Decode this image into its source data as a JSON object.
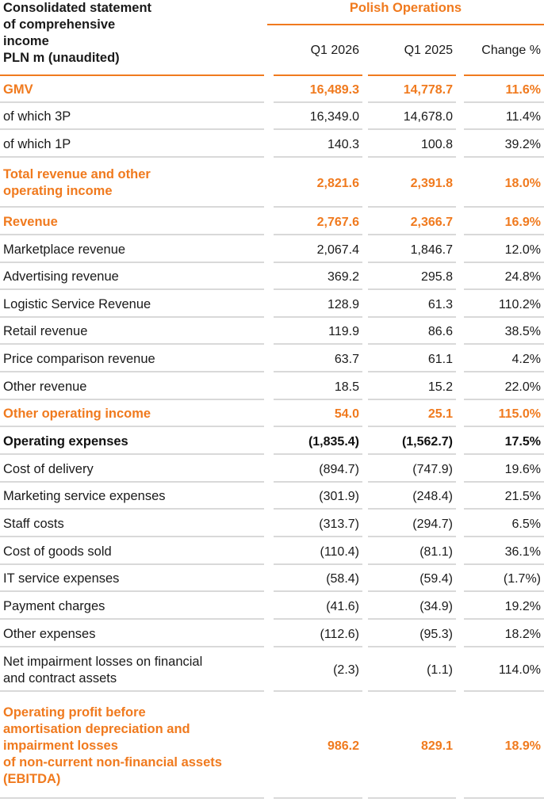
{
  "header": {
    "title_lines": [
      "Consolidated statement",
      "of comprehensive",
      "income",
      "PLN m (unaudited)"
    ],
    "group": "Polish Operations",
    "columns": [
      "Q1 2026",
      "Q1 2025",
      "Change %"
    ]
  },
  "colors": {
    "accent": "#f07a1e",
    "separator": "#d9d9d9"
  },
  "rows": [
    {
      "label": [
        "GMV"
      ],
      "v": [
        "16,489.3",
        "14,778.7",
        "11.6%"
      ],
      "style": "hl"
    },
    {
      "label": [
        "of which 3P"
      ],
      "v": [
        "16,349.0",
        "14,678.0",
        "11.4%"
      ],
      "style": ""
    },
    {
      "label": [
        "of which 1P"
      ],
      "v": [
        "140.3",
        "100.8",
        "39.2%"
      ],
      "style": ""
    },
    {
      "label": [
        "Total revenue and other",
        "operating income"
      ],
      "v": [
        "2,821.6",
        "2,391.8",
        "18.0%"
      ],
      "style": "hl"
    },
    {
      "label": [
        "Revenue"
      ],
      "v": [
        "2,767.6",
        "2,366.7",
        "16.9%"
      ],
      "style": "hl"
    },
    {
      "label": [
        "Marketplace revenue"
      ],
      "v": [
        "2,067.4",
        "1,846.7",
        "12.0%"
      ],
      "style": ""
    },
    {
      "label": [
        "Advertising revenue"
      ],
      "v": [
        "369.2",
        "295.8",
        "24.8%"
      ],
      "style": ""
    },
    {
      "label": [
        "Logistic Service Revenue"
      ],
      "v": [
        "128.9",
        "61.3",
        "110.2%"
      ],
      "style": ""
    },
    {
      "label": [
        "Retail revenue"
      ],
      "v": [
        "119.9",
        "86.6",
        "38.5%"
      ],
      "style": ""
    },
    {
      "label": [
        "Price comparison revenue"
      ],
      "v": [
        "63.7",
        "61.1",
        "4.2%"
      ],
      "style": ""
    },
    {
      "label": [
        "Other revenue"
      ],
      "v": [
        "18.5",
        "15.2",
        "22.0%"
      ],
      "style": ""
    },
    {
      "label": [
        "Other operating income"
      ],
      "v": [
        "54.0",
        "25.1",
        "115.0%"
      ],
      "style": "hl"
    },
    {
      "label": [
        "Operating expenses"
      ],
      "v": [
        "(1,835.4)",
        "(1,562.7)",
        "17.5%"
      ],
      "style": "bold"
    },
    {
      "label": [
        "Cost of delivery"
      ],
      "v": [
        "(894.7)",
        "(747.9)",
        "19.6%"
      ],
      "style": ""
    },
    {
      "label": [
        "Marketing service expenses"
      ],
      "v": [
        "(301.9)",
        "(248.4)",
        "21.5%"
      ],
      "style": ""
    },
    {
      "label": [
        "Staff costs"
      ],
      "v": [
        "(313.7)",
        "(294.7)",
        "6.5%"
      ],
      "style": ""
    },
    {
      "label": [
        "Cost of goods sold"
      ],
      "v": [
        "(110.4)",
        "(81.1)",
        "36.1%"
      ],
      "style": ""
    },
    {
      "label": [
        "IT service expenses"
      ],
      "v": [
        "(58.4)",
        "(59.4)",
        "(1.7%)"
      ],
      "style": ""
    },
    {
      "label": [
        "Payment charges"
      ],
      "v": [
        "(41.6)",
        "(34.9)",
        "19.2%"
      ],
      "style": ""
    },
    {
      "label": [
        "Other expenses"
      ],
      "v": [
        "(112.6)",
        "(95.3)",
        "18.2%"
      ],
      "style": ""
    },
    {
      "label": [
        "Net impairment losses on financial",
        "and contract assets"
      ],
      "v": [
        "(2.3)",
        "(1.1)",
        "114.0%"
      ],
      "style": ""
    },
    {
      "label": [
        "Operating profit before",
        "amortisation depreciation and",
        "impairment losses",
        "of non-current non-financial assets",
        "(EBITDA)"
      ],
      "v": [
        "986.2",
        "829.1",
        "18.9%"
      ],
      "style": "hl"
    }
  ]
}
